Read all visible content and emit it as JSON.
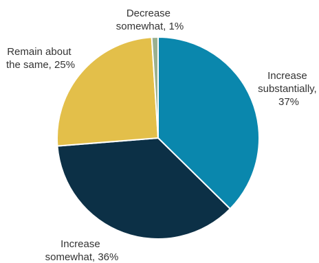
{
  "chart_data": {
    "type": "pie",
    "start_angle_deg": 0,
    "direction": "clockwise",
    "slices": [
      {
        "label_lines": [
          "Increase",
          "substantially,",
          "37%"
        ],
        "value": 37,
        "color": "#0a87ad"
      },
      {
        "label_lines": [
          "Increase",
          "somewhat, 36%"
        ],
        "value": 36,
        "color": "#0c3046"
      },
      {
        "label_lines": [
          "Remain about",
          "the same, 25%"
        ],
        "value": 25,
        "color": "#e3bf4a"
      },
      {
        "label_lines": [
          "Decrease",
          "somewhat, 1%"
        ],
        "value": 1,
        "color": "#9ab08f"
      }
    ]
  }
}
